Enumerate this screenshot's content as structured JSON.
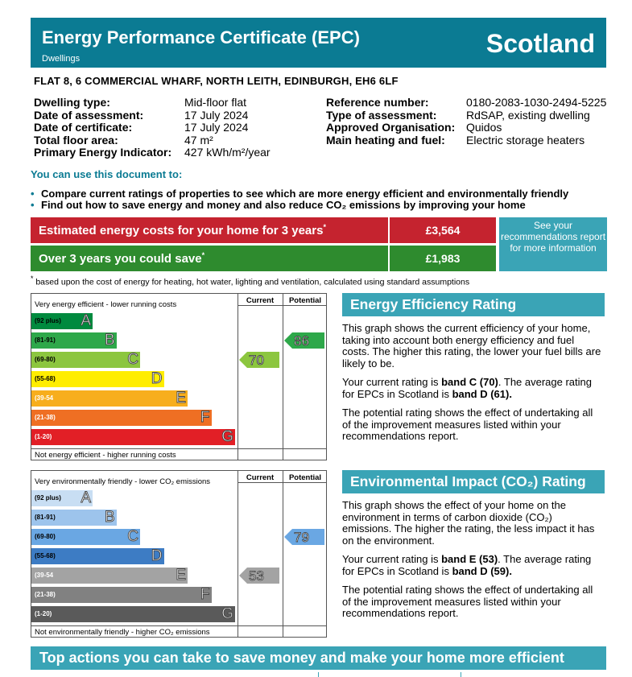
{
  "header": {
    "title": "Energy Performance Certificate (EPC)",
    "subtitle": "Dwellings",
    "country": "Scotland"
  },
  "address": "FLAT 8, 6 COMMERCIAL WHARF, NORTH LEITH, EDINBURGH, EH6 6LF",
  "details_left": [
    {
      "label": "Dwelling type:",
      "value": "Mid-floor flat"
    },
    {
      "label": "Date of assessment:",
      "value": "17 July 2024"
    },
    {
      "label": "Date of certificate:",
      "value": "17 July 2024"
    },
    {
      "label": "Total floor area:",
      "value": "47 m²"
    },
    {
      "label": "Primary Energy Indicator:",
      "value": "427 kWh/m²/year"
    }
  ],
  "details_right": [
    {
      "label": "Reference number:",
      "value": "0180-2083-1030-2494-5225"
    },
    {
      "label": "Type of assessment:",
      "value": "RdSAP, existing dwelling"
    },
    {
      "label": "Approved Organisation:",
      "value": "Quidos"
    },
    {
      "label": "Main heating and fuel:",
      "value": "Electric storage heaters"
    }
  ],
  "use_title": "You can use this document to:",
  "bullets": [
    "Compare current ratings of properties to see which are more energy efficient and environmentally friendly",
    "Find out how to save energy and money and also reduce CO₂ emissions by improving your home"
  ],
  "costs": {
    "estimated_label": "Estimated energy costs for your home for 3 years",
    "estimated_value": "£3,564",
    "save_label": "Over 3 years you could save",
    "save_value": "£1,983",
    "marker": "*",
    "see_recommendations": "See your recommendations report for more information"
  },
  "footnote_marker": "*",
  "footnote": "based upon the cost of energy for heating, hot water, lighting and ventilation, calculated using standard assumptions",
  "efficiency_chart": {
    "top_text": "Very energy efficient - lower running costs",
    "bottom_text": "Not energy efficient - higher running costs",
    "current_header": "Current",
    "potential_header": "Potential",
    "bands": [
      {
        "range": "(92 plus)",
        "letter": "A",
        "color": "#008a3e"
      },
      {
        "range": "(81-91)",
        "letter": "B",
        "color": "#2ea84a"
      },
      {
        "range": "(69-80)",
        "letter": "C",
        "color": "#8cc63f"
      },
      {
        "range": "(55-68)",
        "letter": "D",
        "color": "#ffed00"
      },
      {
        "range": "(39-54",
        "letter": "E",
        "color": "#f7ae1d"
      },
      {
        "range": "(21-38)",
        "letter": "F",
        "color": "#ef6f23"
      },
      {
        "range": "(1-20)",
        "letter": "G",
        "color": "#e21f26"
      }
    ],
    "current": {
      "value": "70",
      "band_index": 2,
      "color": "#8cc63f"
    },
    "potential": {
      "value": "86",
      "band_index": 1,
      "color": "#2ea84a"
    }
  },
  "co2_chart": {
    "top_text": "Very environmentally friendly - lower CO₂ emissions",
    "bottom_text": "Not environmentally friendly - higher CO₂ emissions",
    "current_header": "Current",
    "potential_header": "Potential",
    "bands": [
      {
        "range": "(92 plus)",
        "letter": "A",
        "color": "#c8def3"
      },
      {
        "range": "(81-91)",
        "letter": "B",
        "color": "#9dc4ec"
      },
      {
        "range": "(69-80)",
        "letter": "C",
        "color": "#6aa7e3"
      },
      {
        "range": "(55-68)",
        "letter": "D",
        "color": "#3d7cc4"
      },
      {
        "range": "(39-54",
        "letter": "E",
        "color": "#a3a3a3"
      },
      {
        "range": "(21-38)",
        "letter": "F",
        "color": "#818181"
      },
      {
        "range": "(1-20)",
        "letter": "G",
        "color": "#5a5a5a"
      }
    ],
    "current": {
      "value": "53",
      "band_index": 4,
      "color": "#a3a3a3"
    },
    "potential": {
      "value": "79",
      "band_index": 2,
      "color": "#6aa7e3"
    }
  },
  "eer": {
    "title": "Energy Efficiency Rating",
    "p1": "This graph shows the current efficiency of your home, taking into account both energy efficiency and fuel costs. The higher this rating, the lower your fuel bills are likely to be.",
    "p2_pre": "Your current rating is ",
    "p2_b1": "band C (70)",
    "p2_mid": ". The average rating for EPCs in Scotland is ",
    "p2_b2": "band D (61).",
    "p3": "The potential rating shows the effect of undertaking all of the improvement measures listed within your recommendations report."
  },
  "eir": {
    "title": "Environmental Impact (CO₂) Rating",
    "p1": "This graph shows the effect of your home on the environment in terms of carbon dioxide (CO₂) emissions. The higher the rating, the less impact it has on the environment.",
    "p2_pre": "Your current rating is ",
    "p2_b1": "band E (53)",
    "p2_mid": ". The average rating for EPCs in Scotland is ",
    "p2_b2": "band D (59).",
    "p3": "The potential rating shows the effect of undertaking all of the improvement measures listed within your recommendations report."
  },
  "top_actions": "Top actions you can take to save money and make your home more efficient"
}
